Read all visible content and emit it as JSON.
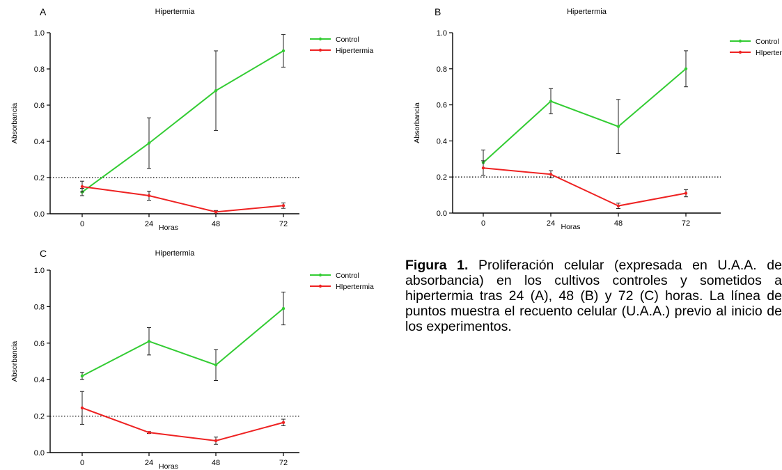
{
  "colors": {
    "control": "#33cc33",
    "hipertermia": "#ee2222",
    "axis": "#000000",
    "reference": "#000000"
  },
  "caption": {
    "lead": "Figura 1.",
    "text": " Proliferación celular (expresada en U.A.A. de absorbancia) en los cultivos controles y sometidos a hipertermia tras 24 (A), 48 (B) y 72 (C) horas. La línea de puntos muestra el recuento celular (U.A.A.) previo al inicio de los experimentos."
  },
  "chart_data": [
    {
      "type": "line",
      "panel": "A",
      "title": "Hipertermia",
      "xlabel": "Horas",
      "ylabel": "Absorbancia",
      "x": [
        0,
        24,
        48,
        72
      ],
      "xticks": [
        "0",
        "24",
        "48",
        "72"
      ],
      "yticks": [
        "0.0",
        "0.2",
        "0.4",
        "0.6",
        "0.8",
        "1.0"
      ],
      "ylim": [
        0,
        1.0
      ],
      "reference_line": 0.2,
      "legend_position": "top-right",
      "series": [
        {
          "name": "Control",
          "color": "#33cc33",
          "values": [
            0.12,
            0.39,
            0.68,
            0.9
          ],
          "error": [
            0.02,
            0.14,
            0.22,
            0.09
          ]
        },
        {
          "name": "Hipertermia",
          "color": "#ee2222",
          "values": [
            0.15,
            0.1,
            0.01,
            0.045
          ],
          "error": [
            0.03,
            0.025,
            0.008,
            0.015
          ]
        }
      ]
    },
    {
      "type": "line",
      "panel": "B",
      "title": "Hipertermia",
      "xlabel": "Horas",
      "ylabel": "Absorbancia",
      "x": [
        0,
        24,
        48,
        72
      ],
      "xticks": [
        "0",
        "24",
        "48",
        "72"
      ],
      "yticks": [
        "0.0",
        "0.2",
        "0.4",
        "0.6",
        "0.8",
        "1.0"
      ],
      "ylim": [
        0,
        1.0
      ],
      "reference_line": 0.2,
      "legend_position": "top-right",
      "series": [
        {
          "name": "Control",
          "color": "#33cc33",
          "values": [
            0.28,
            0.62,
            0.48,
            0.8
          ],
          "error": [
            0.07,
            0.07,
            0.15,
            0.1
          ]
        },
        {
          "name": "HIpertermia",
          "color": "#ee2222",
          "values": [
            0.25,
            0.215,
            0.04,
            0.11
          ],
          "error": [
            0.04,
            0.02,
            0.015,
            0.02
          ]
        }
      ]
    },
    {
      "type": "line",
      "panel": "C",
      "title": "Hipertermia",
      "xlabel": "Horas",
      "ylabel": "Absorbancia",
      "x": [
        0,
        24,
        48,
        72
      ],
      "xticks": [
        "0",
        "24",
        "48",
        "72"
      ],
      "yticks": [
        "0.0",
        "0.2",
        "0.4",
        "0.6",
        "0.8",
        "1.0"
      ],
      "ylim": [
        0,
        1.0
      ],
      "reference_line": 0.2,
      "legend_position": "top-right",
      "series": [
        {
          "name": "Control",
          "color": "#33cc33",
          "values": [
            0.42,
            0.61,
            0.48,
            0.79
          ],
          "error": [
            0.02,
            0.075,
            0.085,
            0.09
          ]
        },
        {
          "name": "HIpertermia",
          "color": "#ee2222",
          "values": [
            0.245,
            0.11,
            0.065,
            0.165
          ],
          "error": [
            0.09,
            0.005,
            0.02,
            0.018
          ]
        }
      ]
    }
  ]
}
